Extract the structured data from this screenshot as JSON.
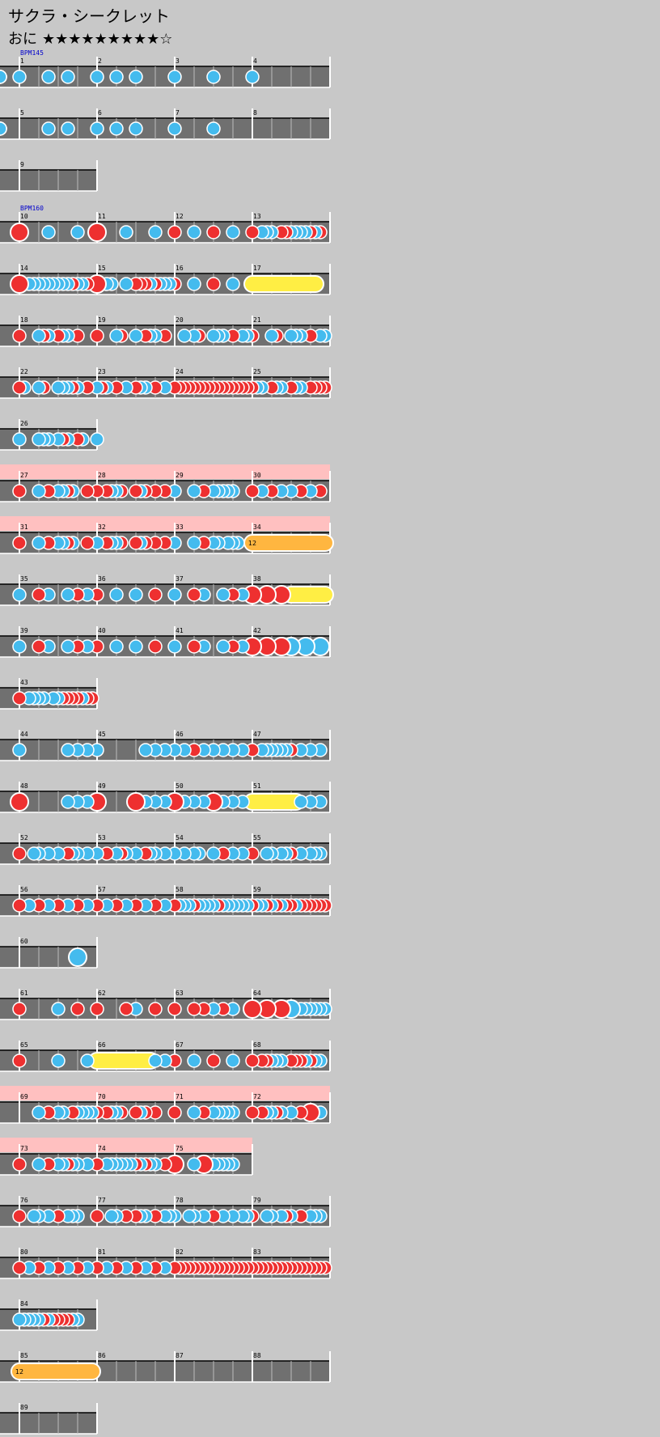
{
  "header": {
    "title": "サクラ・シークレット",
    "difficulty": "おに",
    "stars": "★★★★★★★★★☆"
  },
  "colors": {
    "background": "#c8c8c8",
    "lane": "#707070",
    "gogo": "#ffc0c0",
    "don": "#ee3030",
    "ka": "#44bbee",
    "roll": "#ffee44",
    "balloon": "#ffb640",
    "bpm_text": "#0000cc"
  },
  "rows": [
    {
      "start": 1,
      "measures": 4,
      "bpm": "BPM145",
      "beats": 16,
      "gogo": false,
      "notes": "d0,dk0.5,d1.5,d2.5,dk3,d4,d5,d6,dk7,d8,dk9,d10,dk11,d12,dk13"
    },
    {
      "start": 5,
      "measures": 4,
      "beats": 16,
      "gogo": false,
      "notes": "dk0,d1.5,d2.5,dk3,d4,d5,d6,dk7,d8,dk9,d10,dK12"
    },
    {
      "start": 9,
      "measures": 1,
      "beats": 4,
      "gogo": false,
      "notes": ""
    },
    {
      "start": 10,
      "measures": 4,
      "bpm": "BPM160",
      "beats": 16,
      "gogo": false,
      "notes": "R0,k1.5,k3,R4,k5.5,k7,r8,k9,r10,k11,r12,k12.5,k12.75,k13,r13.5,r13.75,k14,k14.25,k14.5,k14.75,r15,k15.25,r15.5"
    },
    {
      "start": 14,
      "measures": 4,
      "beats": 16,
      "gogo": false,
      "notes": "R0,k0.5,k0.75,k1,k1.25,k1.5,k1.75,k2,k2.25,k2.5,r2.75,k3,k3.25,r3.5,R4,k4.5,k4.75,k5.5,r6,r6.25,r6.5,k6.75,r7,k7.25,k7.5,k7.75,r8,k9,r10,k11,Y12-15.25"
    },
    {
      "start": 18,
      "measures": 4,
      "beats": 16,
      "gogo": false,
      "notes": "r0,k1,r1.25,k1.5,r2,k2.25,k2.5,r3,r4,k5,r5.25,k6,r6.5,k6.75,k7,r7.5,k8.5,k9,r9.25,k10,k10.25,k10.5,r11,k11.5,k11.75,r12,k13,r13.25,k14,k14.25,k14.5,r15,k15.5,k15.75"
    },
    {
      "start": 22,
      "measures": 4,
      "beats": 16,
      "gogo": false,
      "notes": "r0,k0.25,k1,r1.25,k2,k2.25,k2.5,r2.75,k3,r3.5,k4,r4.25,k4.5,r5,k5.5,r6,k6.25,k6.5,r7,k7.5,r8,r8.25,r8.5,r8.75,r9,r9.25,r9.5,r9.75,r10,r10.25,r10.5,r10.75,r11,r11.25,r11.5,r11.75,r12,k12.25,k12.5,r13,k13.25,k13.5,r14,k14.25,k14.5,r15,r15.25,r15.5,r15.75"
    },
    {
      "start": 26,
      "measures": 1,
      "beats": 4,
      "gogo": false,
      "notes": "k0,k1,k1.25,k1.5,k2,r2.25,k2.5,r3,k3.25,k4"
    },
    {
      "start": 27,
      "measures": 4,
      "beats": 16,
      "gogo": true,
      "notes": "r0,k1,r1.5,k2,k2.25,r2.5,k2.75,r3.5,r4,r4.5,k4.75,k5,r5.25,r6,k6.25,r6.5,r7,r7.5,k8,k9,r9.5,k10,k10.25,k10.5,k10.75,k11,r12,k12.5,r13,k13.5,k14,r14.5,k15,r15.5"
    },
    {
      "start": 31,
      "measures": 4,
      "beats": 16,
      "gogo": true,
      "notes": "r0,k1,r1.5,k2,k2.25,r2.5,k2.75,r3.5,k4,r4.5,k4.75,k5,r5.25,r6,k6.25,r6.5,r7,r7.5,k8,k9,r9.5,k10,k10.25,k10.75,k11,k11.25,B12-15.75"
    },
    {
      "start": 35,
      "measures": 4,
      "beats": 16,
      "gogo": false,
      "notes": "k0,r1,k1.5,k2.5,r3,k3.5,r4,k5,k6,r7,k8,r9,k9.5,k10.5,r11,k11.5,R12,R12.75,R13.5,Y14-15.75"
    },
    {
      "start": 39,
      "measures": 4,
      "beats": 16,
      "gogo": false,
      "notes": "k0,r1,k1.5,k2.5,r3,k3.5,r4,k5,k6,r7,k8,r9,k9.5,k10.5,r11,k11.5,R12,R12.75,R13.5,K14,K14.75,K15.5"
    },
    {
      "start": 43,
      "measures": 1,
      "beats": 4,
      "gogo": false,
      "notes": "r0,k0.5,k0.75,k1,k1.25,k1.75,k2,r2.25,r2.5,r2.75,r3,k3.25,r3.5,r3.75"
    },
    {
      "start": 44,
      "measures": 4,
      "beats": 16,
      "gogo": false,
      "notes": "k0,k2.5,k3,k3.5,k4,k6.5,k7,k7.5,k8,k8.5,r9,k9.5,k10,k10.5,k11,k11.5,r12,k12.5,k12.75,k13,k13.25,k13.5,k13.75,r14,k14.5,k15,k15.5"
    },
    {
      "start": 48,
      "measures": 4,
      "beats": 16,
      "gogo": false,
      "notes": "R0,k2.5,k3,k3.5,R4,R6,k6.5,k7,k7.5,R8,k8.5,k9,k9.5,R10,k10.5,k11,k11.5,Y12-14.25,k14.5,k15,k15.5"
    },
    {
      "start": 52,
      "measures": 4,
      "beats": 16,
      "gogo": false,
      "notes": "r0,k0.75,k1,k1.5,k2,r2.5,k2.75,k3,k3.5,k4,r4.5,k5,r5.25,k5.5,k6,r6.5,k6.75,k7,k7.5,k8,k8.5,k9,k9.25,k10,r10.5,k11,k11.5,r12,k12.75,k13,k13.5,k13.75,r14,k14.5,k15,k15.25,k15.5"
    },
    {
      "start": 56,
      "measures": 4,
      "beats": 16,
      "gogo": false,
      "notes": "r0,k0.5,r1,k1.5,r2,k2.5,r3,k3.5,r4,k4.5,r5,k5.5,r6,k6.5,r7,k7.5,r8,k8.25,k8.5,k8.75,r9,k9.25,k9.5,k9.75,k10,r10.25,k10.5,k10.75,k11,k11.25,k11.5,k11.75,r12,k12.25,k12.5,r12.75,k13,r13.25,k13.5,r13.75,r14,k14.25,r14.5,r14.75,r15,r15.25,r15.5,r15.75"
    },
    {
      "start": 60,
      "measures": 1,
      "beats": 4,
      "gogo": false,
      "notes": "K3"
    },
    {
      "start": 61,
      "measures": 4,
      "beats": 16,
      "gogo": false,
      "notes": "r0,k2,r3,r4,r5.5,k6,r7,r8,r9,r9.5,k10,r10.5,k11,R12,R12.75,R13.5,K14,k14.5,k14.75,k15,k15.25,k15.5,k15.75"
    },
    {
      "start": 65,
      "measures": 4,
      "beats": 16,
      "gogo": false,
      "notes": "r0,k2,k3.5,Y4-6.75,k7,k7.5,r8,k9,r10,k11,r12,r12.5,r12.75,k13,k13.25,k13.5,r14,r14.25,r14.5,k14.75,r15,k15.25,k15.5"
    },
    {
      "start": 69,
      "measures": 4,
      "beats": 16,
      "gogo": true,
      "notes": "k1,r1.5,k2,k2.25,r2.75,k3,k3.25,k3.5,k3.75,r4,r4.5,k4.75,k5,r5.25,r6,k6.25,r6.5,r7,r8,k9,r9.5,k10,k10.25,k10.5,k10.75,k11,r12,r12.5,k12.75,k13,r13.25,k13.5,k14,r14.5,R15,k15.5"
    },
    {
      "start": 73,
      "measures": 3,
      "beats": 12,
      "gogo": true,
      "notes": "r0,k1,r1.5,k2,k2.25,r2.5,k2.75,k3,k3.5,r4,k4.5,k4.75,k5,k5.25,k5.5,k5.75,r6,k6.25,r6.5,k6.75,k7,r7.5,R8,k9,R9.5,k10,k10.25,k10.5,k10.75,k11"
    },
    {
      "start": 76,
      "measures": 4,
      "beats": 16,
      "gogo": false,
      "notes": "r0,k0.75,k1,k1.5,r2,k2.5,k2.75,k3,r4,k4.75,k5,r5.5,r6,k6.25,k6.5,r7,k7.5,k7.75,k8,k8.75,k9,k9.5,r10,k10.5,k11,k11.5,k11.75,r12,k12.75,k13,k13.5,r13.75,k14,r14.5,k15,k15.25,k15.5"
    },
    {
      "start": 80,
      "measures": 4,
      "beats": 16,
      "gogo": false,
      "notes": "r0,k0.5,r1,k1.5,r2,k2.5,r3,k3.5,r4,k4.5,r5,k5.5,r6,k6.5,r7,k7.5,r8,r8.25,r8.5,r8.75,r9,r9.25,r9.5,r9.75,r10,r10.25,r10.5,r10.75,r11,r11.25,r11.5,r11.75,r12,r12.25,r12.5,r12.75,r13,r13.25,r13.5,r13.75,r14,r14.25,r14.5,r14.75,r15,r15.25,r15.5,r15.75"
    },
    {
      "start": 84,
      "measures": 1,
      "beats": 4,
      "gogo": false,
      "notes": "k0,k0.25,k0.5,k0.75,k1,r1.25,k1.5,r1.75,r2,r2.25,r2.5,k2.75,k3"
    },
    {
      "start": 85,
      "measures": 4,
      "beats": 16,
      "gogo": false,
      "notes": "B0-3.75"
    },
    {
      "start": 89,
      "measures": 1,
      "beats": 4,
      "gogo": false,
      "notes": ""
    }
  ]
}
